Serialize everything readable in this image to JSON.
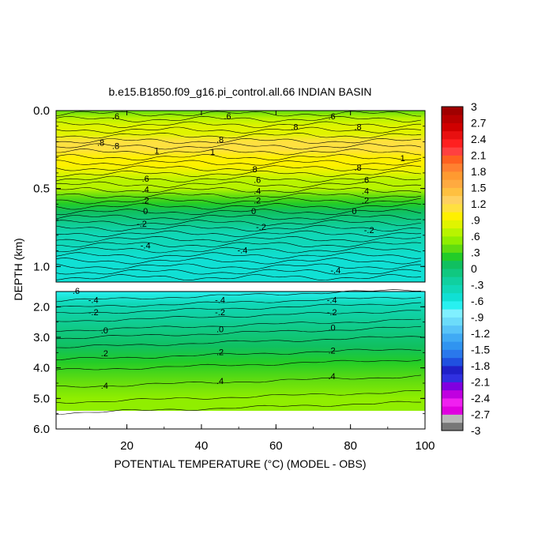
{
  "chart_data": {
    "type": "heatmap",
    "title": "b.e15.B1850.f09_g16.pi_control.all.66 INDIAN BASIN",
    "xlabel": "POTENTIAL TEMPERATURE (°C) (MODEL - OBS)",
    "ylabel": "DEPTH (km)",
    "xlim": [
      1,
      100
    ],
    "x_ticks": [
      20,
      40,
      60,
      80,
      100
    ],
    "upper_panel": {
      "ylim": [
        0.0,
        1.1
      ],
      "y_ticks": [
        "0.0",
        "0.5",
        "1.0"
      ],
      "y_tick_values": [
        0.0,
        0.5,
        1.0
      ]
    },
    "lower_panel": {
      "ylim": [
        1.5,
        6.0
      ],
      "y_ticks": [
        "2.0",
        "3.0",
        "4.0",
        "5.0",
        "6.0"
      ],
      "y_tick_values": [
        2.0,
        3.0,
        4.0,
        5.0,
        6.0
      ]
    },
    "colorbar": {
      "levels": [
        -3,
        -2.85,
        -2.7,
        -2.55,
        -2.4,
        -2.25,
        -2.1,
        -1.95,
        -1.8,
        -1.65,
        -1.5,
        -1.35,
        -1.2,
        -1.05,
        -0.9,
        -0.75,
        -0.6,
        -0.45,
        -0.3,
        -0.15,
        0,
        0.15,
        0.3,
        0.45,
        0.6,
        0.75,
        0.9,
        1.05,
        1.2,
        1.35,
        1.5,
        1.65,
        1.8,
        1.95,
        2.1,
        2.25,
        2.4,
        2.55,
        2.7,
        2.85,
        3
      ],
      "labels": [
        "3",
        "2.7",
        "2.4",
        "2.1",
        "1.8",
        "1.5",
        "1.2",
        ".9",
        ".6",
        ".3",
        "0",
        "-.3",
        "-.6",
        "-.9",
        "-1.2",
        "-1.5",
        "-1.8",
        "-2.1",
        "-2.4",
        "-2.7",
        "-3"
      ],
      "label_values": [
        3,
        2.7,
        2.4,
        2.1,
        1.8,
        1.5,
        1.2,
        0.9,
        0.6,
        0.3,
        0,
        -0.3,
        -0.6,
        -0.9,
        -1.2,
        -1.5,
        -1.8,
        -2.1,
        -2.4,
        -2.7,
        -3
      ],
      "colors": [
        "#777777",
        "#b8b8b8",
        "#e000e0",
        "#f020f0",
        "#c000e0",
        "#8000e0",
        "#3030e0",
        "#2020c8",
        "#2050e0",
        "#2a78ec",
        "#3094f0",
        "#40aaf4",
        "#58c4f8",
        "#6cdcfa",
        "#80f0ff",
        "#28f0f0",
        "#10e0d4",
        "#10d8b8",
        "#10d0a0",
        "#10c880",
        "#10c060",
        "#22cc28",
        "#60dc10",
        "#90ee00",
        "#b8f400",
        "#e0f400",
        "#fff000",
        "#ffe040",
        "#ffd060",
        "#ffc040",
        "#ffaa40",
        "#ff9a30",
        "#ff8030",
        "#ff6020",
        "#ff4040",
        "#ff2020",
        "#e81010",
        "#d00000",
        "#b80000",
        "#a00000"
      ]
    },
    "upper_series": [
      {
        "depth": 0.0,
        "value": 0.4
      },
      {
        "depth": 0.05,
        "value": 0.7
      },
      {
        "depth": 0.1,
        "value": 0.75
      },
      {
        "depth": 0.15,
        "value": 0.85
      },
      {
        "depth": 0.2,
        "value": 1.05
      },
      {
        "depth": 0.25,
        "value": 1.15
      },
      {
        "depth": 0.3,
        "value": 1.0
      },
      {
        "depth": 0.35,
        "value": 0.9
      },
      {
        "depth": 0.4,
        "value": 0.8
      },
      {
        "depth": 0.45,
        "value": 0.7
      },
      {
        "depth": 0.5,
        "value": 0.6
      },
      {
        "depth": 0.55,
        "value": 0.4
      },
      {
        "depth": 0.6,
        "value": 0.25
      },
      {
        "depth": 0.65,
        "value": 0.05
      },
      {
        "depth": 0.7,
        "value": -0.1
      },
      {
        "depth": 0.75,
        "value": -0.25
      },
      {
        "depth": 0.8,
        "value": -0.35
      },
      {
        "depth": 0.85,
        "value": -0.42
      },
      {
        "depth": 0.95,
        "value": -0.5
      },
      {
        "depth": 1.1,
        "value": -0.55
      }
    ],
    "lower_series": [
      {
        "depth": 1.5,
        "value": -0.62
      },
      {
        "depth": 1.9,
        "value": -0.4
      },
      {
        "depth": 2.3,
        "value": -0.22
      },
      {
        "depth": 2.8,
        "value": -0.05
      },
      {
        "depth": 3.3,
        "value": 0.1
      },
      {
        "depth": 3.8,
        "value": 0.22
      },
      {
        "depth": 4.4,
        "value": 0.35
      },
      {
        "depth": 5.0,
        "value": 0.48
      },
      {
        "depth": 5.35,
        "value": 0.55
      }
    ],
    "upper_contour_labels": [
      {
        "text": ".8",
        "x": 17,
        "depth": 0.24
      },
      {
        "text": "1",
        "x": 28,
        "depth": 0.27
      },
      {
        "text": "1",
        "x": 43,
        "depth": 0.28
      },
      {
        "text": ".8",
        "x": 54,
        "depth": 0.39
      },
      {
        "text": ".8",
        "x": 82,
        "depth": 0.38
      },
      {
        "text": "1",
        "x": 94,
        "depth": 0.32
      },
      {
        "text": ".8",
        "x": 13,
        "depth": 0.22
      },
      {
        "text": ".8",
        "x": 45,
        "depth": 0.2
      },
      {
        "text": ".8",
        "x": 65,
        "depth": 0.12
      },
      {
        "text": ".8",
        "x": 82,
        "depth": 0.12
      },
      {
        "text": ".6",
        "x": 25,
        "depth": 0.45
      },
      {
        "text": ".6",
        "x": 55,
        "depth": 0.46
      },
      {
        "text": ".6",
        "x": 84,
        "depth": 0.46
      },
      {
        "text": ".4",
        "x": 25,
        "depth": 0.52
      },
      {
        "text": ".4",
        "x": 55,
        "depth": 0.53
      },
      {
        "text": ".4",
        "x": 84,
        "depth": 0.53
      },
      {
        "text": ".2",
        "x": 25,
        "depth": 0.59
      },
      {
        "text": ".2",
        "x": 55,
        "depth": 0.59
      },
      {
        "text": ".2",
        "x": 84,
        "depth": 0.59
      },
      {
        "text": "0",
        "x": 25,
        "depth": 0.66
      },
      {
        "text": "0",
        "x": 54,
        "depth": 0.66
      },
      {
        "text": "0",
        "x": 81,
        "depth": 0.66
      },
      {
        "text": "-.2",
        "x": 24,
        "depth": 0.74
      },
      {
        "text": "-.2",
        "x": 56,
        "depth": 0.76
      },
      {
        "text": "-.2",
        "x": 85,
        "depth": 0.78
      },
      {
        "text": "-.4",
        "x": 25,
        "depth": 0.88
      },
      {
        "text": "-.4",
        "x": 51,
        "depth": 0.91
      },
      {
        "text": "-.4",
        "x": 76,
        "depth": 1.04
      },
      {
        "text": ".6",
        "x": 17,
        "depth": 0.05
      },
      {
        "text": ".6",
        "x": 47,
        "depth": 0.05
      },
      {
        "text": ".6",
        "x": 75,
        "depth": 0.05
      }
    ],
    "lower_contour_labels": [
      {
        "text": "-.6",
        "x": 6,
        "depth": 1.55
      },
      {
        "text": "-.4",
        "x": 11,
        "depth": 1.85
      },
      {
        "text": "-.4",
        "x": 45,
        "depth": 1.85
      },
      {
        "text": "-.4",
        "x": 75,
        "depth": 1.85
      },
      {
        "text": "-.2",
        "x": 11,
        "depth": 2.25
      },
      {
        "text": "-.2",
        "x": 45,
        "depth": 2.25
      },
      {
        "text": "-.2",
        "x": 75,
        "depth": 2.25
      },
      {
        "text": ".0",
        "x": 14,
        "depth": 2.85
      },
      {
        "text": ".0",
        "x": 45,
        "depth": 2.8
      },
      {
        "text": ".0",
        "x": 75,
        "depth": 2.75
      },
      {
        "text": ".2",
        "x": 14,
        "depth": 3.6
      },
      {
        "text": ".2",
        "x": 45,
        "depth": 3.55
      },
      {
        "text": ".2",
        "x": 75,
        "depth": 3.5
      },
      {
        "text": ".4",
        "x": 14,
        "depth": 4.65
      },
      {
        "text": ".4",
        "x": 45,
        "depth": 4.5
      },
      {
        "text": ".4",
        "x": 75,
        "depth": 4.35
      }
    ]
  }
}
